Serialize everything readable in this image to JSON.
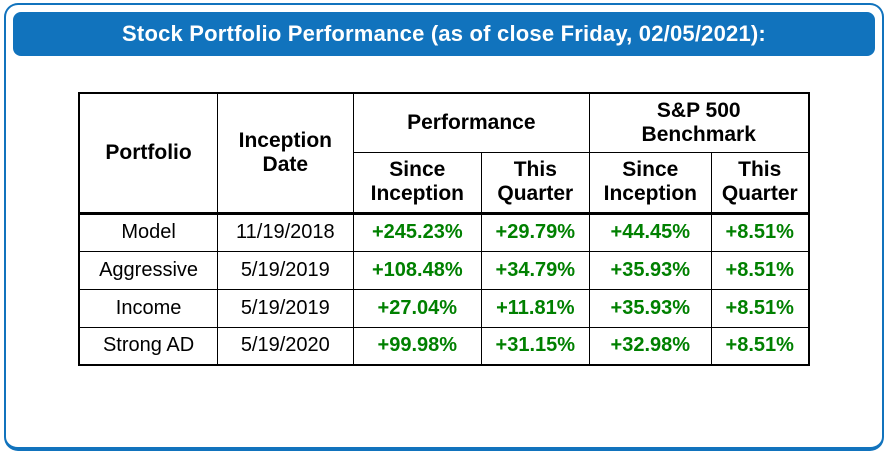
{
  "header": {
    "title": "Stock Portfolio Performance (as of close Friday, 02/05/2021):"
  },
  "colors": {
    "header_bg": "#1173bd",
    "card_border": "#1173bd",
    "positive": "#008000",
    "table_border": "#000000"
  },
  "table": {
    "headers": {
      "portfolio": "Portfolio",
      "inception_date": "Inception Date",
      "performance_group": "Performance",
      "sp500_group": "S&P 500 Benchmark",
      "since_inception": "Since Inception",
      "this_quarter": "This Quarter"
    },
    "rows": [
      {
        "portfolio": "Model",
        "inception_date": "11/19/2018",
        "perf_since_inception": "+245.23%",
        "perf_this_quarter": "+29.79%",
        "sp_since_inception": "+44.45%",
        "sp_this_quarter": "+8.51%"
      },
      {
        "portfolio": "Aggressive",
        "inception_date": "5/19/2019",
        "perf_since_inception": "+108.48%",
        "perf_this_quarter": "+34.79%",
        "sp_since_inception": "+35.93%",
        "sp_this_quarter": "+8.51%"
      },
      {
        "portfolio": "Income",
        "inception_date": "5/19/2019",
        "perf_since_inception": "+27.04%",
        "perf_this_quarter": "+11.81%",
        "sp_since_inception": "+35.93%",
        "sp_this_quarter": "+8.51%"
      },
      {
        "portfolio": "Strong AD",
        "inception_date": "5/19/2020",
        "perf_since_inception": "+99.98%",
        "perf_this_quarter": "+31.15%",
        "sp_since_inception": "+32.98%",
        "sp_this_quarter": "+8.51%"
      }
    ]
  },
  "chart_data": {
    "type": "table",
    "title": "Stock Portfolio Performance (as of close Friday, 02/05/2021):",
    "columns": [
      "Portfolio",
      "Inception Date",
      "Performance Since Inception",
      "Performance This Quarter",
      "S&P 500 Benchmark Since Inception",
      "S&P 500 Benchmark This Quarter"
    ],
    "rows": [
      [
        "Model",
        "11/19/2018",
        "+245.23%",
        "+29.79%",
        "+44.45%",
        "+8.51%"
      ],
      [
        "Aggressive",
        "5/19/2019",
        "+108.48%",
        "+34.79%",
        "+35.93%",
        "+8.51%"
      ],
      [
        "Income",
        "5/19/2019",
        "+27.04%",
        "+11.81%",
        "+35.93%",
        "+8.51%"
      ],
      [
        "Strong AD",
        "5/19/2020",
        "+99.98%",
        "+31.15%",
        "+32.98%",
        "+8.51%"
      ]
    ],
    "value_color": "#008000",
    "layout_hints": {
      "grouped_headers": [
        "Performance",
        "S&P 500 Benchmark"
      ],
      "grid": true
    }
  }
}
